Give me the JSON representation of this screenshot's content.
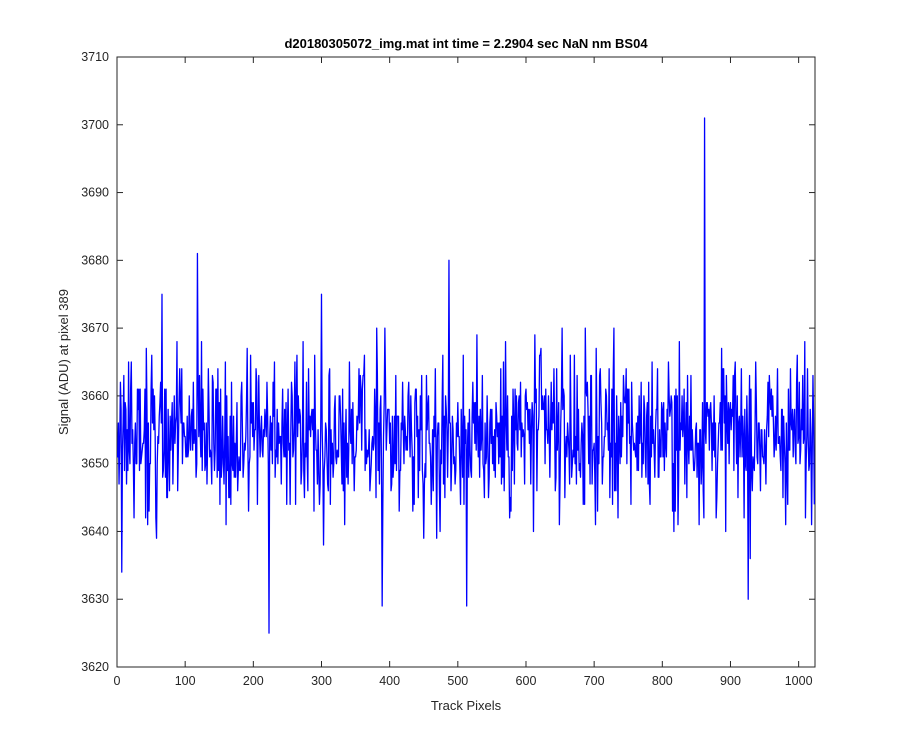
{
  "chart_data": {
    "type": "line",
    "title": "d20180305072_img.mat int time = 2.2904 sec  NaN nm BS04",
    "xlabel": "Track Pixels",
    "ylabel": "Signal (ADU) at pixel 389",
    "xlim": [
      0,
      1024
    ],
    "ylim": [
      3620,
      3710
    ],
    "xticks": [
      0,
      100,
      200,
      300,
      400,
      500,
      600,
      700,
      800,
      900,
      1000
    ],
    "yticks": [
      3620,
      3630,
      3640,
      3650,
      3660,
      3670,
      3680,
      3690,
      3700,
      3710
    ],
    "xtick_labels": [
      "0",
      "100",
      "200",
      "300",
      "400",
      "500",
      "600",
      "700",
      "800",
      "900",
      "1000"
    ],
    "ytick_labels": [
      "3620",
      "3630",
      "3640",
      "3650",
      "3660",
      "3670",
      "3680",
      "3690",
      "3700",
      "3710"
    ],
    "grid": false,
    "line_color": "#0000ff",
    "series": [
      {
        "n_points": 1024,
        "mean": 3654.5,
        "std": 6.5,
        "min": 3625,
        "max": 3701,
        "peaks": [
          {
            "x": 118,
            "y": 3681
          },
          {
            "x": 223,
            "y": 3625
          },
          {
            "x": 487,
            "y": 3680
          },
          {
            "x": 862,
            "y": 3701
          },
          {
            "x": 926,
            "y": 3630
          },
          {
            "x": 389,
            "y": 3629
          },
          {
            "x": 513,
            "y": 3629
          },
          {
            "x": 7,
            "y": 3634
          },
          {
            "x": 300,
            "y": 3675
          },
          {
            "x": 66,
            "y": 3675
          }
        ]
      }
    ]
  }
}
